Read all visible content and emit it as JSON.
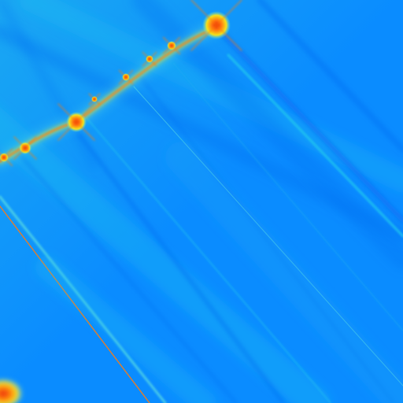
{
  "image": {
    "subject": "fractal-render",
    "palette": {
      "deep_blue": "#0a6cf2",
      "mid_blue": "#0a8cff",
      "sky_blue": "#1aa8f2",
      "cyan": "#22c8ee",
      "aqua": "#5fe3e0",
      "yellow": "#f5e11a",
      "orange": "#ff7a10",
      "red": "#e8280a"
    }
  }
}
